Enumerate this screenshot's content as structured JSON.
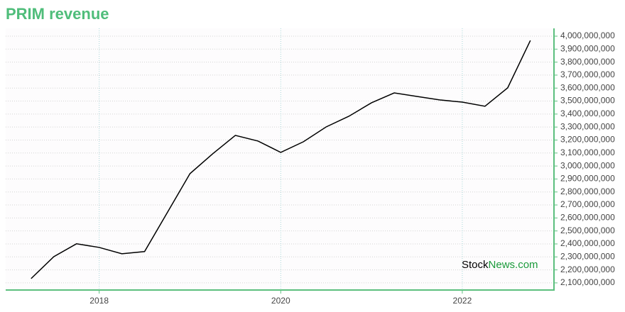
{
  "chart_data": {
    "type": "line",
    "title": "PRIM revenue",
    "watermark": [
      "Stock",
      "News.com"
    ],
    "x": [
      2017.25,
      2017.5,
      2017.75,
      2018,
      2018.25,
      2018.5,
      2018.75,
      2019,
      2019.25,
      2019.5,
      2019.75,
      2020,
      2020.25,
      2020.5,
      2020.75,
      2021,
      2021.25,
      2021.5,
      2021.75,
      2022,
      2022.25,
      2022.5,
      2022.75
    ],
    "series": [
      {
        "color": "#000000",
        "values": [
          2133000000,
          2302000000,
          2401000000,
          2373000000,
          2324000000,
          2341000000,
          2641000000,
          2941000000,
          3094000000,
          3236000000,
          3192000000,
          3105000000,
          3187000000,
          3301000000,
          3383000000,
          3487000000,
          3563000000,
          3536000000,
          3509000000,
          3492000000,
          3460000000,
          3602000000,
          3967000000
        ]
      }
    ],
    "xlim": [
      2016.97,
      2023.01
    ],
    "xticks": [
      2018,
      2020,
      2022
    ],
    "ylim": [
      2045000000,
      4060000000
    ],
    "yticks": [
      {
        "value": 2100000000,
        "label": "2,100,000,000"
      },
      {
        "value": 2200000000,
        "label": "2,200,000,000"
      },
      {
        "value": 2300000000,
        "label": "2,300,000,000"
      },
      {
        "value": 2400000000,
        "label": "2,400,000,000"
      },
      {
        "value": 2500000000,
        "label": "2,500,000,000"
      },
      {
        "value": 2600000000,
        "label": "2,600,000,000"
      },
      {
        "value": 2700000000,
        "label": "2,700,000,000"
      },
      {
        "value": 2800000000,
        "label": "2,800,000,000"
      },
      {
        "value": 2900000000,
        "label": "2,900,000,000"
      },
      {
        "value": 3000000000,
        "label": "3,000,000,000"
      },
      {
        "value": 3100000000,
        "label": "3,100,000,000"
      },
      {
        "value": 3200000000,
        "label": "3,200,000,000"
      },
      {
        "value": 3300000000,
        "label": "3,300,000,000"
      },
      {
        "value": 3400000000,
        "label": "3,400,000,000"
      },
      {
        "value": 3500000000,
        "label": "3,500,000,000"
      },
      {
        "value": 3600000000,
        "label": "3,600,000,000"
      },
      {
        "value": 3700000000,
        "label": "3,700,000,000"
      },
      {
        "value": 3800000000,
        "label": "3,800,000,000"
      },
      {
        "value": 3900000000,
        "label": "3,900,000,000"
      },
      {
        "value": 4000000000,
        "label": "4,000,000,000"
      }
    ],
    "grid": true,
    "axis_color": "#5cbf7e"
  }
}
